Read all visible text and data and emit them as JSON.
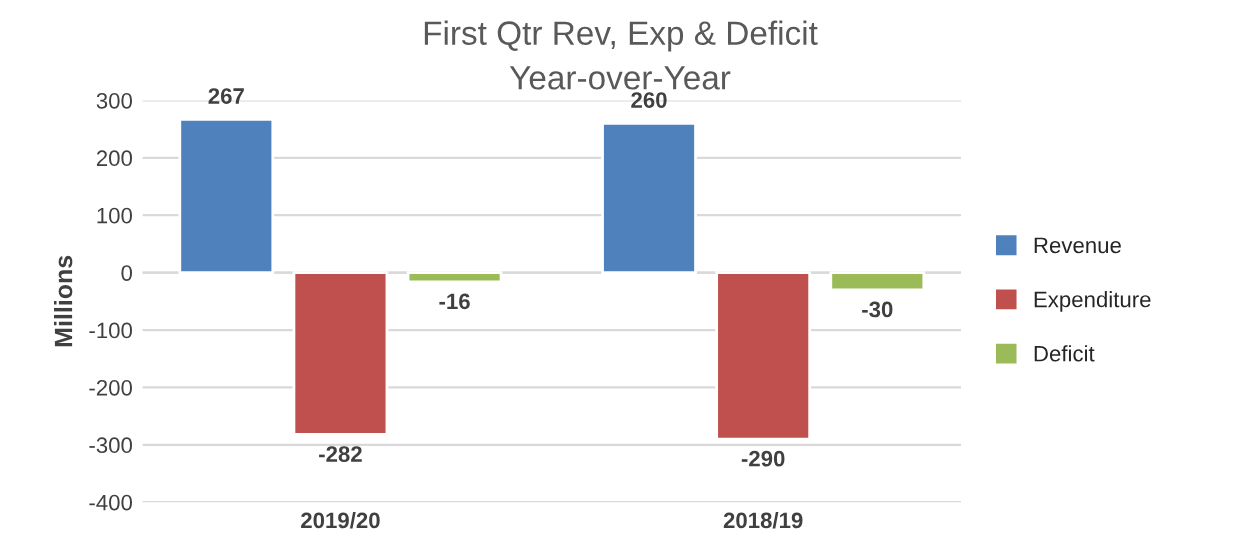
{
  "chart_data": {
    "type": "bar",
    "title": "First Qtr Rev, Exp & Deficit",
    "subtitle": "Year-over-Year",
    "ylabel": "Millions",
    "categories": [
      "2019/20",
      "2018/19"
    ],
    "series": [
      {
        "name": "Revenue",
        "color": "#4f81bd",
        "values": [
          267,
          260
        ]
      },
      {
        "name": "Expenditure",
        "color": "#c0504d",
        "values": [
          -282,
          -290
        ]
      },
      {
        "name": "Deficit",
        "color": "#9bbb59",
        "values": [
          -16,
          -30
        ]
      }
    ],
    "ylim": [
      -400,
      300
    ],
    "yticks": [
      -400,
      -300,
      -200,
      -100,
      0,
      100,
      200,
      300
    ],
    "grid": "y",
    "legend": "right",
    "data_labels": true
  }
}
